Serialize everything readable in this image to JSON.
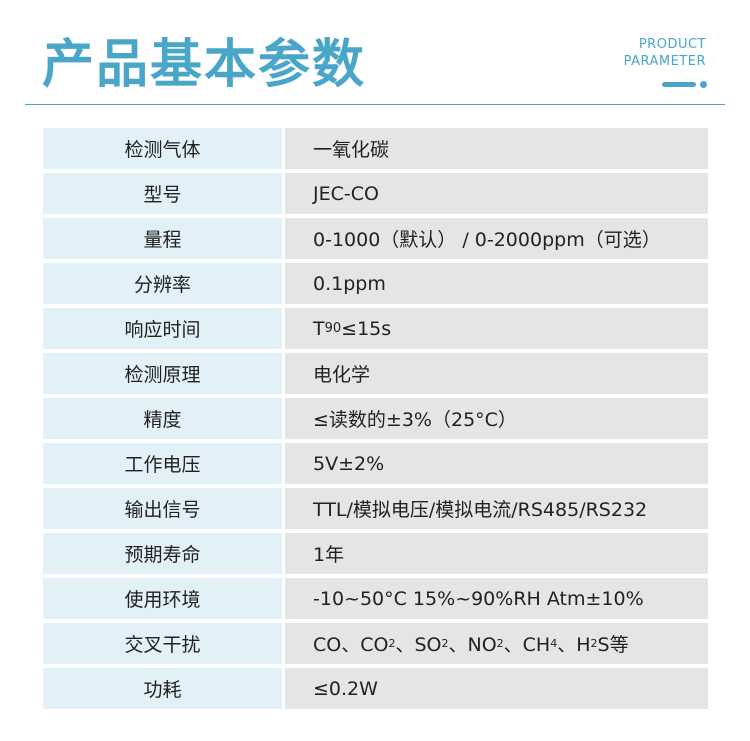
{
  "header": {
    "title": "产品基本参数",
    "en_line1": "PRODUCT",
    "en_line2": "PARAMETER",
    "accent": "#4aa6c9"
  },
  "rows": [
    {
      "label": "检测气体",
      "value": [
        {
          "t": "一氧化碳"
        }
      ]
    },
    {
      "label": "型号",
      "value": [
        {
          "t": "JEC-CO"
        }
      ]
    },
    {
      "label": "量程",
      "value": [
        {
          "t": "0-1000（默认） / 0-2000ppm（可选）"
        }
      ]
    },
    {
      "label": "分辨率",
      "value": [
        {
          "t": "0.1ppm"
        }
      ]
    },
    {
      "label": "响应时间",
      "value": [
        {
          "t": "T"
        },
        {
          "t": "90",
          "small": true
        },
        {
          "t": "≤15s"
        }
      ]
    },
    {
      "label": "检测原理",
      "value": [
        {
          "t": "电化学"
        }
      ]
    },
    {
      "label": "精度",
      "value": [
        {
          "t": "≤读数的±3%（25°C）"
        }
      ]
    },
    {
      "label": "工作电压",
      "value": [
        {
          "t": "5V±2%"
        }
      ]
    },
    {
      "label": "输出信号",
      "value": [
        {
          "t": "TTL/模拟电压/模拟电流/RS485/RS232"
        }
      ]
    },
    {
      "label": "预期寿命",
      "value": [
        {
          "t": "1年"
        }
      ]
    },
    {
      "label": "使用环境",
      "value": [
        {
          "t": "-10~50°C 15%~90%RH  Atm±10%"
        }
      ]
    },
    {
      "label": "交叉干扰",
      "value": [
        {
          "t": "CO、CO"
        },
        {
          "t": "2",
          "sub": true
        },
        {
          "t": "、SO"
        },
        {
          "t": "2",
          "sub": true
        },
        {
          "t": "、NO"
        },
        {
          "t": "2",
          "sub": true
        },
        {
          "t": "、CH"
        },
        {
          "t": "4",
          "sub": true
        },
        {
          "t": "、H"
        },
        {
          "t": "2",
          "sub": true
        },
        {
          "t": "S等"
        }
      ]
    },
    {
      "label": "功耗",
      "value": [
        {
          "t": "≤0.2W"
        }
      ]
    }
  ]
}
